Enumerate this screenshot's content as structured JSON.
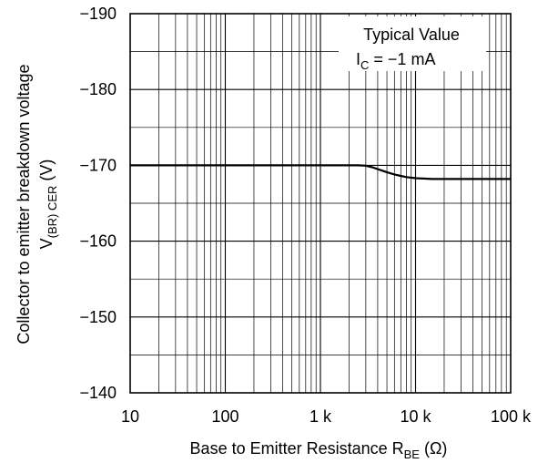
{
  "chart_data": {
    "type": "line",
    "x_scale": "log",
    "xlim": [
      10,
      100000
    ],
    "ylim": [
      -140,
      -190
    ],
    "x_ticks": [
      10,
      100,
      1000,
      10000,
      100000
    ],
    "x_tick_labels": [
      "10",
      "100",
      "1 k",
      "10 k",
      "100 k"
    ],
    "y_ticks": [
      -190,
      -180,
      -170,
      -160,
      -150,
      -140
    ],
    "y_tick_labels": [
      "−190",
      "−180",
      "−170",
      "−160",
      "−150",
      "−140"
    ],
    "xlabel": {
      "main": "Base to Emitter Resistance  R",
      "sub": "BE",
      "unit": "  (Ω)"
    },
    "ylabel": {
      "line1": "Collector to emitter breakdown voltage",
      "line2_main": "V",
      "line2_sub": "(BR) CER",
      "line2_unit": "  (V)"
    },
    "annotation": {
      "line1": "Typical Value",
      "line2_main": "I",
      "line2_sub": "C",
      "line2_rest": " = −1 mA"
    },
    "grid": true,
    "series": [
      {
        "x": [
          10,
          100,
          1000,
          2500,
          3000,
          3500,
          4000,
          5000,
          6000,
          7000,
          8000,
          10000,
          15000,
          20000,
          50000,
          100000
        ],
        "y": [
          -170,
          -170,
          -170,
          -170,
          -169.95,
          -169.75,
          -169.5,
          -169.1,
          -168.8,
          -168.6,
          -168.45,
          -168.3,
          -168.2,
          -168.2,
          -168.2,
          -168.2
        ]
      }
    ]
  }
}
